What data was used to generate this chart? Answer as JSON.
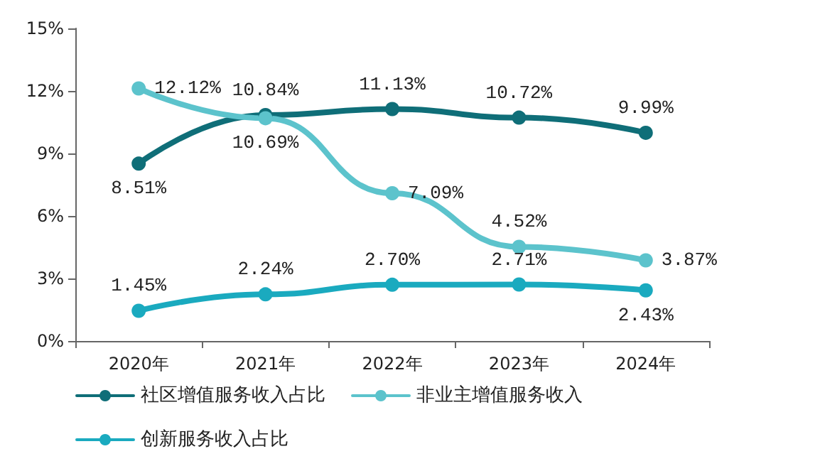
{
  "chart_data": {
    "type": "line",
    "categories": [
      "2020年",
      "2021年",
      "2022年",
      "2023年",
      "2024年"
    ],
    "series": [
      {
        "name": "社区增值服务收入占比",
        "color": "#0f6e78",
        "values": [
          8.51,
          10.84,
          11.13,
          10.72,
          9.99
        ],
        "value_labels": [
          "8.51%",
          "10.84%",
          "11.13%",
          "10.72%",
          "9.99%"
        ]
      },
      {
        "name": "非业主增值服务收入",
        "color": "#5cc3cc",
        "values": [
          12.12,
          10.69,
          7.09,
          4.52,
          3.87
        ],
        "value_labels": [
          "12.12%",
          "10.69%",
          "7.09%",
          "4.52%",
          "3.87%"
        ]
      },
      {
        "name": "创新服务收入占比",
        "color": "#1aaabf",
        "values": [
          1.45,
          2.24,
          2.7,
          2.71,
          2.43
        ],
        "value_labels": [
          "1.45%",
          "2.24%",
          "2.70%",
          "2.71%",
          "2.43%"
        ]
      }
    ],
    "ylim": [
      0,
      15
    ],
    "yticks": [
      {
        "value": 0,
        "label": "0%"
      },
      {
        "value": 3,
        "label": "3%"
      },
      {
        "value": 6,
        "label": "6%"
      },
      {
        "value": 9,
        "label": "9%"
      },
      {
        "value": 12,
        "label": "12%"
      },
      {
        "value": 15,
        "label": "15%"
      }
    ],
    "grid": false,
    "legend": "bottom",
    "marker": "circle",
    "line_style": "solid"
  }
}
